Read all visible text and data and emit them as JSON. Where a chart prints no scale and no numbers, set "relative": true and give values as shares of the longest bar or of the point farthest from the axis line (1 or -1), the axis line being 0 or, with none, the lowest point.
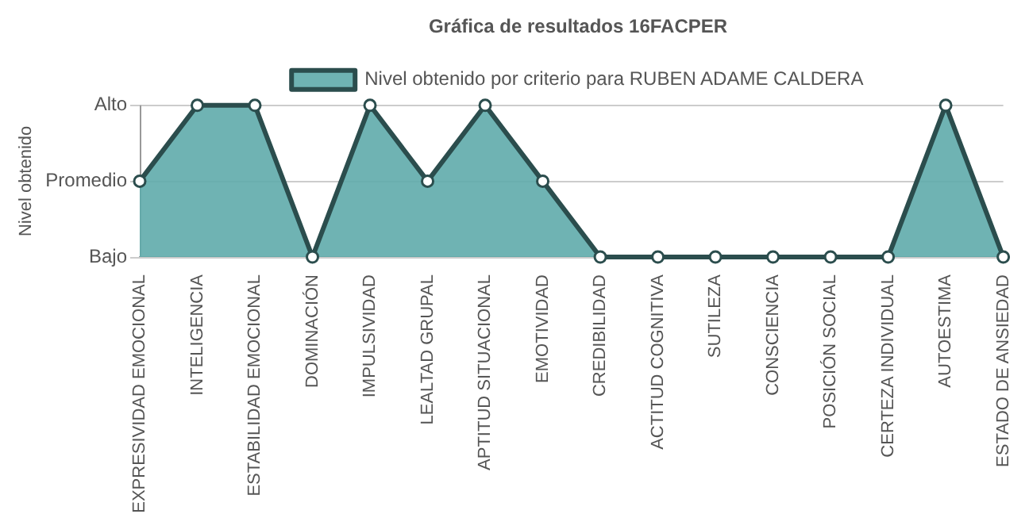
{
  "chart_data": {
    "type": "area",
    "title": "Gráfica de resultados 16FACPER",
    "annotations": [
      "Nivel obtenido"
    ],
    "relative": true,
    "categories": [
      "EXPRESIVIDAD EMOCIONAL",
      "INTELIGENCIA",
      "ESTABILIDAD EMOCIONAL",
      "DOMINACIÓN",
      "IMPULSIVIDAD",
      "LEALTAD GRUPAL",
      "APTITUD SITUACIONAL",
      "EMOTIVIDAD",
      "CREDIBILIDAD",
      "ACTITUD COGNITIVA",
      "SUTILEZA",
      "CONSCIENCIA",
      "POSICIÓN SOCIAL",
      "CERTEZA INDIVIDUAL",
      "AUTOESTIMA",
      "ESTADO DE ANSIEDAD"
    ],
    "series": [
      {
        "name": "Nivel obtenido por criterio para RUBEN ADAME CALDERA",
        "color": "#5fabab",
        "values": [
          0.5,
          1,
          1,
          0,
          1,
          0.5,
          1,
          0.5,
          0,
          0,
          0,
          0,
          0,
          0,
          1,
          0
        ]
      }
    ],
    "ref_lines": [
      {
        "axis": "y",
        "value": 1,
        "label": "Alto",
        "color": "#cccccc"
      },
      {
        "axis": "y",
        "value": 0.5,
        "label": "Promedio",
        "color": "#cccccc"
      },
      {
        "axis": "y",
        "value": 0,
        "label": "Bajo",
        "color": "#cccccc"
      }
    ],
    "legend": "top",
    "marker": "circle"
  }
}
